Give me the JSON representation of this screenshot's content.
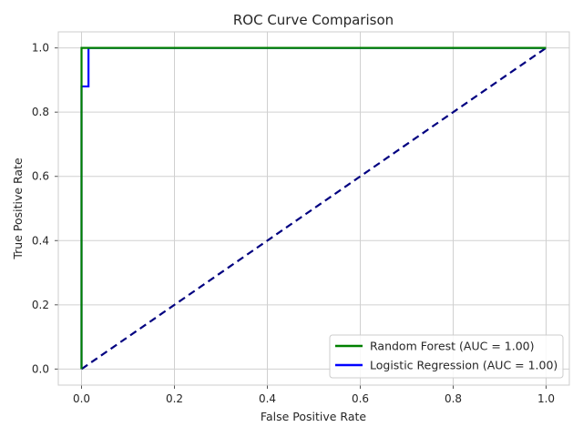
{
  "chart_data": {
    "type": "line",
    "title": "ROC Curve Comparison",
    "xlabel": "False Positive Rate",
    "ylabel": "True Positive Rate",
    "xlim": [
      -0.05,
      1.05
    ],
    "ylim": [
      -0.05,
      1.05
    ],
    "xticks": [
      0.0,
      0.2,
      0.4,
      0.6,
      0.8,
      1.0
    ],
    "yticks": [
      0.0,
      0.2,
      0.4,
      0.6,
      0.8,
      1.0
    ],
    "xtick_labels": [
      "0.0",
      "0.2",
      "0.4",
      "0.6",
      "0.8",
      "1.0"
    ],
    "ytick_labels": [
      "0.0",
      "0.2",
      "0.4",
      "0.6",
      "0.8",
      "1.0"
    ],
    "grid": true,
    "legend_position": "lower-right",
    "series": [
      {
        "name": "Random Forest (AUC = 1.00)",
        "color": "#008000",
        "style": "solid",
        "x": [
          0.0,
          0.0,
          0.0,
          0.0,
          1.0
        ],
        "y": [
          0.0,
          0.88,
          1.0,
          1.0,
          1.0
        ]
      },
      {
        "name": "Logistic Regression (AUC = 1.00)",
        "color": "#0000ff",
        "style": "solid",
        "x": [
          0.0,
          0.0,
          0.015,
          0.015,
          1.0
        ],
        "y": [
          0.0,
          0.88,
          0.88,
          1.0,
          1.0
        ]
      },
      {
        "color": "#000080",
        "style": "dashed",
        "x": [
          0.0,
          1.0
        ],
        "y": [
          0.0,
          1.0
        ]
      }
    ]
  }
}
